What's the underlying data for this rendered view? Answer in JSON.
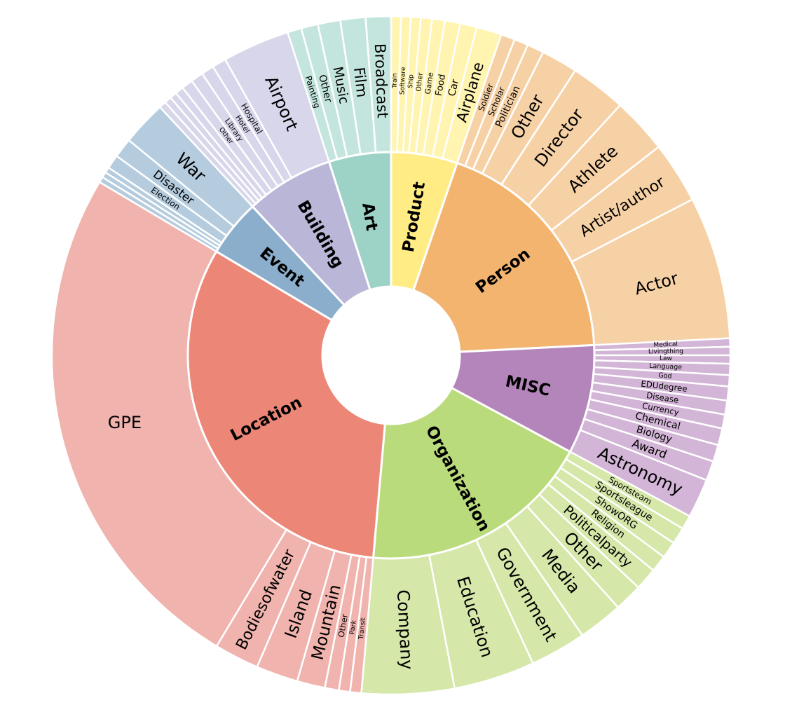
{
  "chart_data": {
    "type": "sunburst",
    "title": "",
    "categories": [
      {
        "name": "Product",
        "color": "#FFEC84",
        "light": "#FFF4B0",
        "children": [
          {
            "name": "Train",
            "value": 0.35
          },
          {
            "name": "Software",
            "value": 0.35
          },
          {
            "name": "Ship",
            "value": 0.35
          },
          {
            "name": "Other",
            "value": 0.4
          },
          {
            "name": "Game",
            "value": 0.45
          },
          {
            "name": "Food",
            "value": 0.55
          },
          {
            "name": "Car",
            "value": 0.6
          },
          {
            "name": "Airplane",
            "value": 0.9
          }
        ]
      },
      {
        "name": "Person",
        "color": "#F2B46F",
        "light": "#F7D1A6",
        "children": [
          {
            "name": "Soldier",
            "value": 0.5
          },
          {
            "name": "Scholar",
            "value": 0.5
          },
          {
            "name": "Politician",
            "value": 0.6
          },
          {
            "name": "Other",
            "value": 1.3
          },
          {
            "name": "Director",
            "value": 2.0
          },
          {
            "name": "Athlete",
            "value": 2.0
          },
          {
            "name": "Artist/author",
            "value": 2.2
          },
          {
            "name": "Actor",
            "value": 5.1
          }
        ]
      },
      {
        "name": "MISC",
        "color": "#B385BA",
        "light": "#D3B5D7",
        "children": [
          {
            "name": "Medical",
            "value": 0.3
          },
          {
            "name": "Livingthing",
            "value": 0.3
          },
          {
            "name": "Law",
            "value": 0.3
          },
          {
            "name": "Language",
            "value": 0.4
          },
          {
            "name": "God",
            "value": 0.4
          },
          {
            "name": "EDUdegree",
            "value": 0.5
          },
          {
            "name": "Disease",
            "value": 0.5
          },
          {
            "name": "Currency",
            "value": 0.5
          },
          {
            "name": "Chemical",
            "value": 0.6
          },
          {
            "name": "Biology",
            "value": 0.6
          },
          {
            "name": "Award",
            "value": 0.7
          },
          {
            "name": "Astronomy",
            "value": 1.4
          }
        ]
      },
      {
        "name": "Organization",
        "color": "#BADB7B",
        "light": "#D5E7A9",
        "children": [
          {
            "name": "Sportsteam",
            "value": 0.5
          },
          {
            "name": "Sportsleague",
            "value": 0.6
          },
          {
            "name": "ShowORG",
            "value": 0.6
          },
          {
            "name": "Religion",
            "value": 0.6
          },
          {
            "name": "Politicalparty",
            "value": 0.8
          },
          {
            "name": "Other",
            "value": 1.0
          },
          {
            "name": "Media",
            "value": 1.6
          },
          {
            "name": "Government",
            "value": 2.0
          },
          {
            "name": "Education",
            "value": 2.9
          },
          {
            "name": "Company",
            "value": 3.3
          }
        ]
      },
      {
        "name": "Location",
        "color": "#EC8677",
        "light": "#F0B3AD",
        "children": [
          {
            "name": "Transit",
            "value": 0.4
          },
          {
            "name": "Park",
            "value": 0.4
          },
          {
            "name": "Other",
            "value": 0.5
          },
          {
            "name": "Mountain",
            "value": 1.0
          },
          {
            "name": "Island",
            "value": 1.5
          },
          {
            "name": "Bodiesofwater",
            "value": 1.6
          },
          {
            "name": "GPE",
            "value": 18.7
          }
        ]
      },
      {
        "name": "Event",
        "color": "#8AAECB",
        "light": "#B5CCDE",
        "children": [
          {
            "name": "",
            "value": 0.2
          },
          {
            "name": "",
            "value": 0.2
          },
          {
            "name": "",
            "value": 0.2
          },
          {
            "name": "Election",
            "value": 0.5
          },
          {
            "name": "Disaster",
            "value": 0.7
          },
          {
            "name": "War",
            "value": 1.6
          }
        ]
      },
      {
        "name": "Building",
        "color": "#BAB6D8",
        "light": "#D8D6EA",
        "children": [
          {
            "name": "",
            "value": 0.25
          },
          {
            "name": "",
            "value": 0.25
          },
          {
            "name": "",
            "value": 0.25
          },
          {
            "name": "",
            "value": 0.3
          },
          {
            "name": "Other",
            "value": 0.4
          },
          {
            "name": "Library",
            "value": 0.45
          },
          {
            "name": "Hotel",
            "value": 0.45
          },
          {
            "name": "Hospital",
            "value": 0.5
          },
          {
            "name": "Airport",
            "value": 2.4
          }
        ]
      },
      {
        "name": "Art",
        "color": "#9DD2C7",
        "light": "#C4E5DE",
        "children": [
          {
            "name": "Painting",
            "value": 0.5
          },
          {
            "name": "Other",
            "value": 0.6
          },
          {
            "name": "Music",
            "value": 0.8
          },
          {
            "name": "Film",
            "value": 0.9
          },
          {
            "name": "Broadcast",
            "value": 0.9
          }
        ]
      }
    ]
  }
}
